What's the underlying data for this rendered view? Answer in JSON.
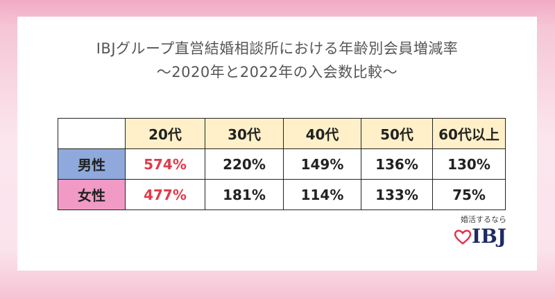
{
  "title_line1": "IBJグループ直営結婚相談所における年齢別会員増減率",
  "title_line2": "～2020年と2022年の入会数比較～",
  "table": {
    "headers": [
      "20代",
      "30代",
      "40代",
      "50代",
      "60代以上"
    ],
    "rows": [
      {
        "label": "男性",
        "values": [
          "574%",
          "220%",
          "149%",
          "136%",
          "130%"
        ]
      },
      {
        "label": "女性",
        "values": [
          "477%",
          "181%",
          "114%",
          "133%",
          "75%"
        ]
      }
    ]
  },
  "logo": {
    "tagline": "婚活するなら",
    "brand": "IBJ"
  },
  "colors": {
    "header_bg": "#fff0c9",
    "male_bg": "#8fa9dc",
    "female_bg": "#f19ac6",
    "highlight_text": "#e03a4a"
  }
}
